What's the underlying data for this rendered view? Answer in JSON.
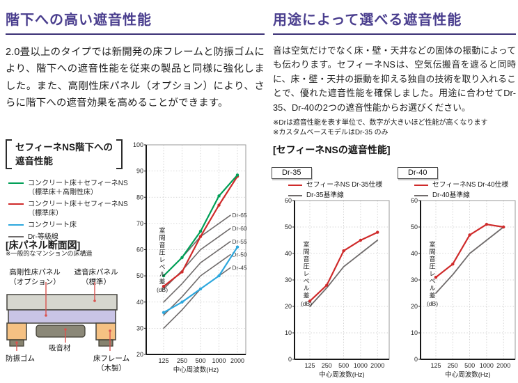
{
  "left": {
    "title": "階下への高い遮音性能",
    "paragraph": "2.0畳以上のタイプでは新開発の床フレームと防振ゴムにより、階下への遮音性能を従来の製品と同様に強化しました。また、高剛性床パネル（オプション）により、さらに階下への遮音効果を高めることができます。",
    "legend_box": {
      "header_line1": "セフィーネNS階下への",
      "header_line2": "遮音性能",
      "items": [
        {
          "label": "コンクリート床＋セフィーネNS",
          "label2": "（標準床＋高剛性床）",
          "color": "#009f57"
        },
        {
          "label": "コンクリート床＋セフィーネNS（標準床）",
          "color": "#cf2a2a"
        },
        {
          "label": "コンクリート床",
          "color": "#2da7dd"
        },
        {
          "label": "Dr-等級線",
          "color": "#6f6b6b"
        }
      ],
      "note": "※一般的なマンションの床構造"
    },
    "floor_diagram": {
      "title": "[床パネル断面図]",
      "labels": {
        "rigid_panel_1": "高剛性床パネル",
        "rigid_panel_2": "（オプション）",
        "sound_panel_1": "遮音床パネル",
        "sound_panel_2": "（標準）",
        "rubber": "防振ゴム",
        "absorber": "吸音材",
        "frame_1": "床フレーム",
        "frame_2": "（木製）"
      }
    }
  },
  "right": {
    "title": "用途によって選べる遮音性能",
    "paragraph": "音は空気だけでなく床・壁・天井などの固体の振動によっても伝わります。セフィーネNSは、空気伝搬音を遮ると同時に、床・壁・天井の振動を抑える独自の技術を取り入れることで、優れた遮音性能を確保しました。用途に合わせてDr-35、Dr-40の2つの遮音性能からお選びください。",
    "notes": [
      "※Drは遮音性能を表す単位で、数字が大きいほど性能が高くなります",
      "※カスタムベースモデルはDr-35 のみ"
    ],
    "section_header": "[セフィーネNSの遮音性能]",
    "dr35": {
      "tab": "Dr-35"
    },
    "dr40": {
      "tab": "Dr-40"
    }
  },
  "chart_data": [
    {
      "type": "line",
      "title": "セフィーネNS階下への遮音性能",
      "categories": [
        "125",
        "250",
        "500",
        "1000",
        "2000"
      ],
      "xlabel": "中心周波数(Hz)",
      "ylabel": "室間音圧レベル差",
      "ylabel_unit": "(dB)",
      "ylim": [
        20,
        100
      ],
      "ytick": 10,
      "grid": true,
      "legend_position": "left-box",
      "series": [
        {
          "name": "コンクリート床＋セフィーネNS（標準床＋高剛性床）",
          "color": "#009f57",
          "values": [
            50,
            57,
            67,
            80.5,
            88.5
          ],
          "dots": true,
          "width": 2.2
        },
        {
          "name": "コンクリート床＋セフィーネNS（標準床）",
          "color": "#cf2a2a",
          "values": [
            46,
            51.5,
            65,
            77,
            88
          ],
          "dots": true,
          "width": 2.2
        },
        {
          "name": "コンクリート床",
          "color": "#2da7dd",
          "values": [
            36,
            40,
            45,
            50,
            61
          ],
          "dots": true,
          "width": 2.2
        },
        {
          "name": "Dr-等級線",
          "right_label": "Dr-65",
          "color": "#6f6b6b",
          "values": [
            50,
            57,
            65,
            70,
            75
          ],
          "width": 1.6
        },
        {
          "name": "Dr-等級線",
          "right_label": "Dr-60",
          "color": "#6f6b6b",
          "values": [
            45,
            52,
            60,
            65,
            70
          ],
          "width": 1.6
        },
        {
          "name": "Dr-等級線",
          "right_label": "Dr-55",
          "color": "#6f6b6b",
          "values": [
            40,
            47,
            55,
            60,
            65
          ],
          "width": 1.6
        },
        {
          "name": "Dr-等級線",
          "right_label": "Dr-50",
          "color": "#6f6b6b",
          "values": [
            35,
            42,
            50,
            55,
            60
          ],
          "width": 1.6
        },
        {
          "name": "Dr-等級線",
          "right_label": "Dr-45",
          "color": "#6f6b6b",
          "values": [
            30,
            37,
            45,
            50,
            55
          ],
          "width": 1.6
        }
      ]
    },
    {
      "type": "line",
      "title": "Dr-35",
      "categories": [
        "125",
        "250",
        "500",
        "1000",
        "2000"
      ],
      "xlabel": "中心周波数(Hz)",
      "ylabel": "室間音圧レベル差",
      "ylabel_unit": "(dB)",
      "ylim": [
        0,
        60
      ],
      "ytick": 10,
      "grid": true,
      "legend_position": "top",
      "series": [
        {
          "name": "セフィーネNS Dr-35仕様",
          "color": "#cf2a2a",
          "values": [
            22,
            28,
            41,
            45,
            48
          ],
          "dots": true,
          "width": 2.2
        },
        {
          "name": "Dr-35基準線",
          "color": "#6f6b6b",
          "values": [
            20,
            27,
            35,
            40,
            45
          ],
          "width": 1.8
        }
      ]
    },
    {
      "type": "line",
      "title": "Dr-40",
      "categories": [
        "125",
        "250",
        "500",
        "1000",
        "2000"
      ],
      "xlabel": "中心周波数(Hz)",
      "ylabel": "室間音圧レベル差",
      "ylabel_unit": "(dB)",
      "ylim": [
        0,
        60
      ],
      "ytick": 10,
      "grid": true,
      "legend_position": "top",
      "series": [
        {
          "name": "セフィーネNS Dr-40仕様",
          "color": "#cf2a2a",
          "values": [
            31,
            36,
            47,
            51,
            50
          ],
          "dots": true,
          "width": 2.2
        },
        {
          "name": "Dr-40基準線",
          "color": "#6f6b6b",
          "values": [
            25,
            32,
            40,
            45,
            50
          ],
          "width": 1.8
        }
      ]
    }
  ]
}
